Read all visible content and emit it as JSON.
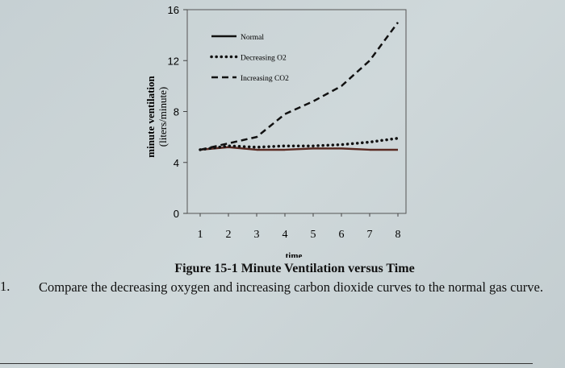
{
  "chart_data": {
    "type": "line",
    "title": "Figure 15-1 Minute Ventilation versus Time",
    "xlabel": "time",
    "ylabel": "minute ventilation",
    "ylabel_units": "(liters/minute)",
    "x": [
      1,
      2,
      3,
      4,
      5,
      6,
      7,
      8
    ],
    "x_ticks": [
      "1",
      "2",
      "3",
      "4",
      "5",
      "6",
      "7",
      "8"
    ],
    "y_ticks": [
      "0",
      "4",
      "8",
      "12",
      "16"
    ],
    "xlim": [
      0.5,
      8.3
    ],
    "ylim": [
      0,
      16
    ],
    "grid": false,
    "legend_position": "top-left",
    "series": [
      {
        "name": "Normal",
        "style": "solid",
        "values": [
          5.0,
          5.2,
          5.0,
          5.0,
          5.1,
          5.1,
          5.0,
          5.0
        ]
      },
      {
        "name": "Decreasing O2",
        "style": "dotted",
        "values": [
          5.0,
          5.3,
          5.2,
          5.3,
          5.3,
          5.4,
          5.6,
          5.9
        ]
      },
      {
        "name": "Increasing CO2",
        "style": "dashed",
        "values": [
          5.0,
          5.5,
          6.0,
          7.8,
          8.8,
          10.0,
          12.0,
          15.0
        ]
      }
    ],
    "colors": {
      "normal_line": "#5a2a22",
      "lines": "#111111"
    }
  },
  "question": {
    "number": "1.",
    "text": "Compare the decreasing oxygen and increasing carbon dioxide curves to the normal gas curve."
  }
}
